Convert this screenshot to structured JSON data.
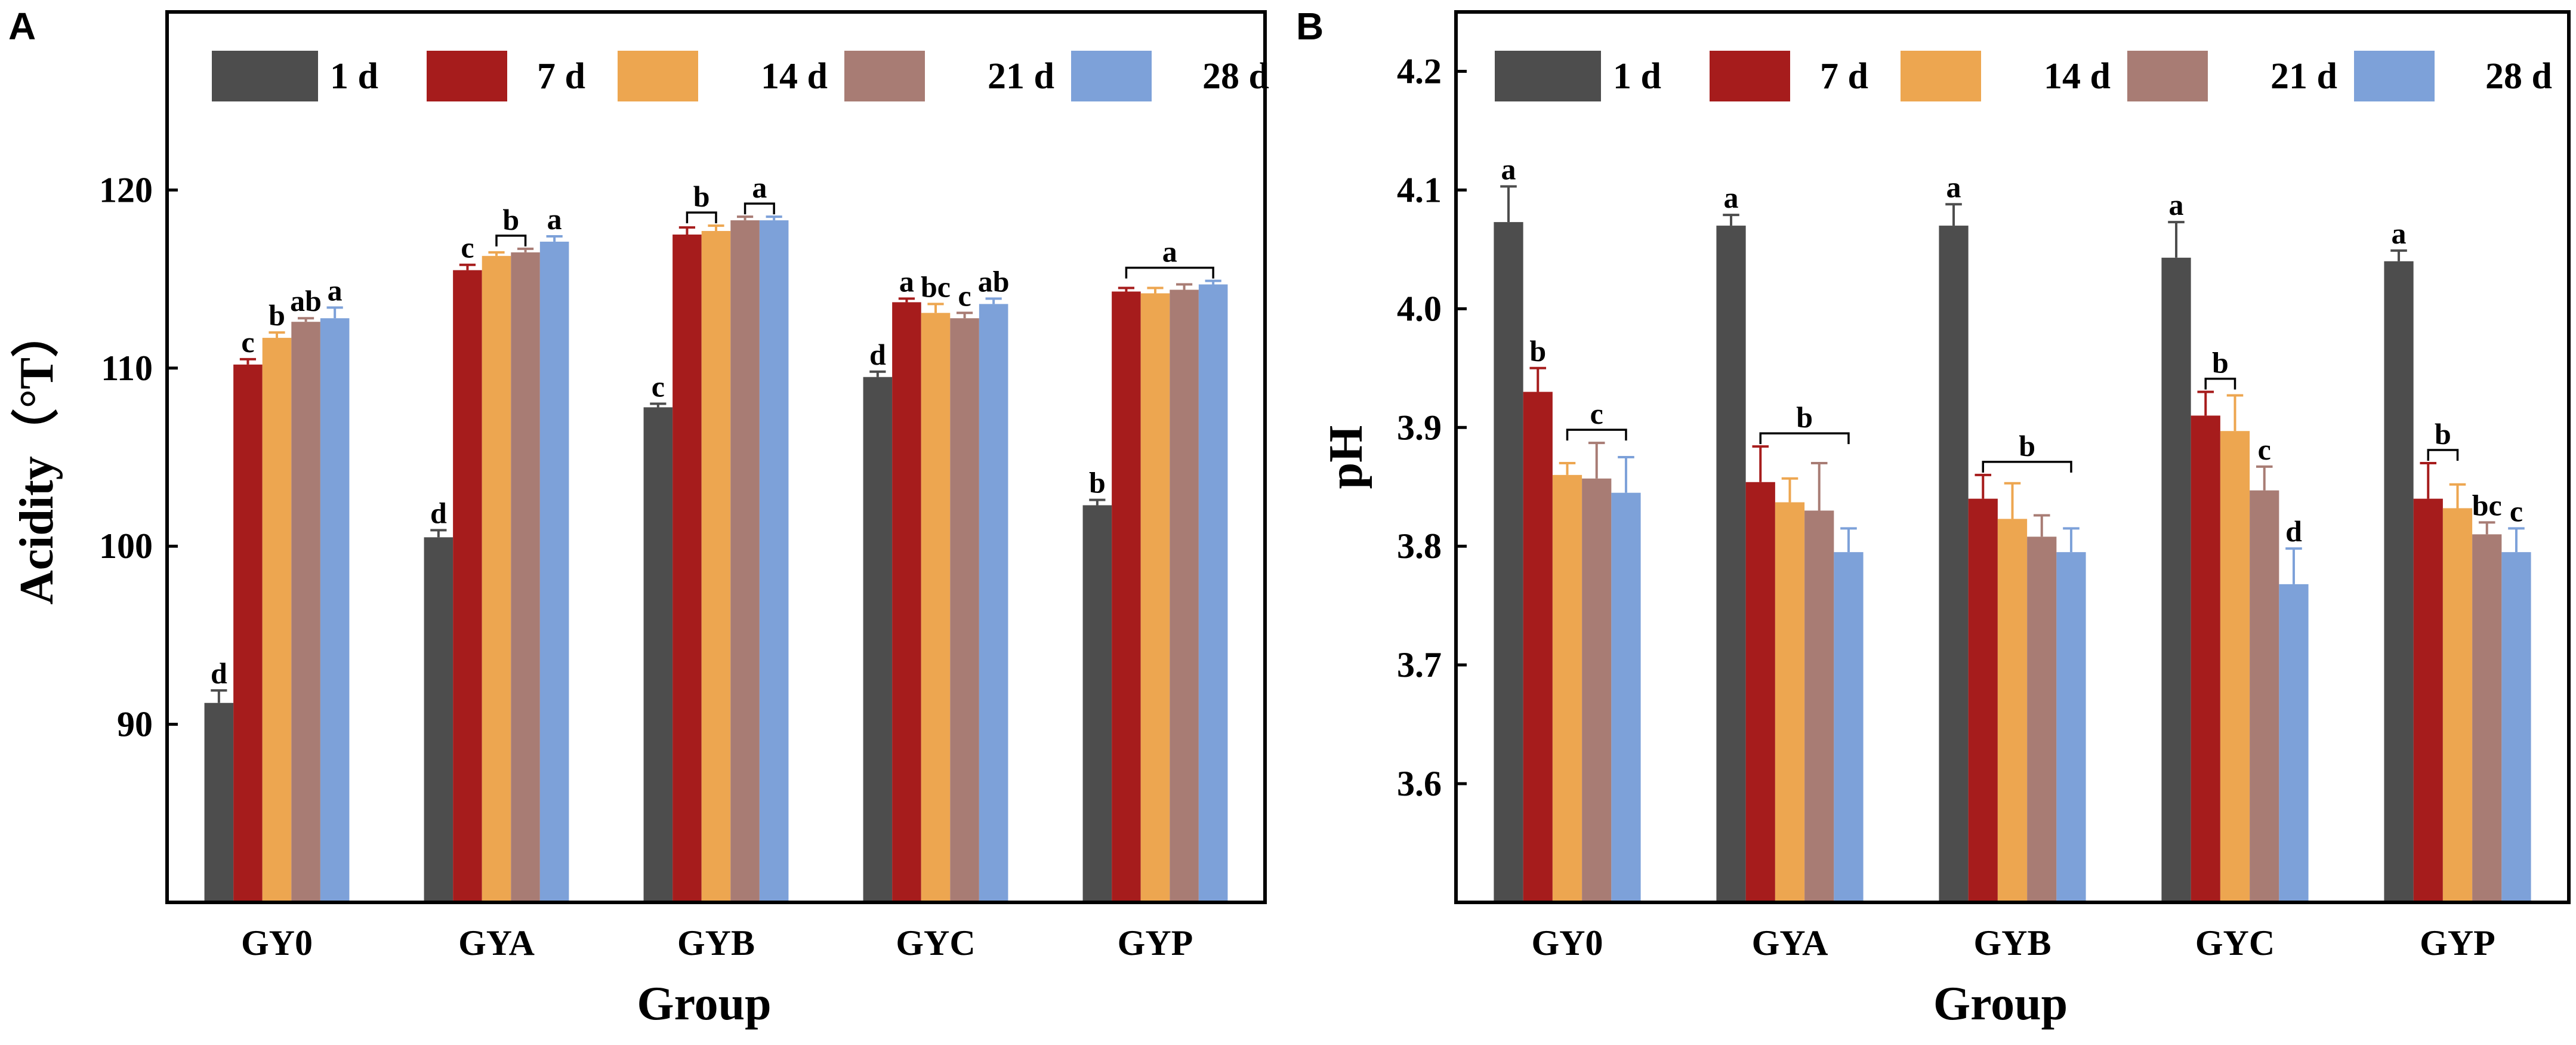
{
  "chart_data": [
    {
      "panel": "A",
      "type": "bar",
      "title": "",
      "xlabel": "Group",
      "ylabel": "Acidity（°T）",
      "ylim": [
        80,
        130
      ],
      "yticks": [
        90,
        100,
        110,
        120
      ],
      "categories": [
        "GY0",
        "GYA",
        "GYB",
        "GYC",
        "GYP"
      ],
      "legend_position": "top",
      "series": [
        {
          "name": "1 d",
          "color": "#4d4d4d",
          "values": [
            91.2,
            100.5,
            107.8,
            109.5,
            102.3
          ],
          "errors": [
            0.7,
            0.4,
            0.2,
            0.3,
            0.3
          ]
        },
        {
          "name": "7 d",
          "color": "#a61c1c",
          "values": [
            110.2,
            115.5,
            117.5,
            113.7,
            114.3
          ],
          "errors": [
            0.3,
            0.3,
            0.4,
            0.2,
            0.2
          ]
        },
        {
          "name": "14 d",
          "color": "#eda650",
          "values": [
            111.7,
            116.3,
            117.7,
            113.1,
            114.2
          ],
          "errors": [
            0.3,
            0.2,
            0.3,
            0.5,
            0.3
          ]
        },
        {
          "name": "21 d",
          "color": "#a87c74",
          "values": [
            112.6,
            116.5,
            118.3,
            112.8,
            114.4
          ],
          "errors": [
            0.2,
            0.2,
            0.2,
            0.3,
            0.3
          ]
        },
        {
          "name": "28 d",
          "color": "#7da1d9",
          "values": [
            112.8,
            117.1,
            118.3,
            113.6,
            114.7
          ],
          "errors": [
            0.6,
            0.3,
            0.2,
            0.3,
            0.2
          ]
        }
      ],
      "annotations": [
        {
          "group": 0,
          "series": 0,
          "text": "d"
        },
        {
          "group": 0,
          "series": 1,
          "text": "c"
        },
        {
          "group": 0,
          "series": 2,
          "text": "b"
        },
        {
          "group": 0,
          "series": 3,
          "text": "ab"
        },
        {
          "group": 0,
          "series": 4,
          "text": "a"
        },
        {
          "group": 1,
          "series": 0,
          "text": "d"
        },
        {
          "group": 1,
          "series": 1,
          "text": "c"
        },
        {
          "group": 1,
          "series": [
            2,
            3
          ],
          "text": "b",
          "bracket": true
        },
        {
          "group": 1,
          "series": 4,
          "text": "a"
        },
        {
          "group": 2,
          "series": 0,
          "text": "c"
        },
        {
          "group": 2,
          "series": [
            1,
            2
          ],
          "text": "b",
          "bracket": true
        },
        {
          "group": 2,
          "series": [
            3,
            4
          ],
          "text": "a",
          "bracket": true
        },
        {
          "group": 3,
          "series": 0,
          "text": "d"
        },
        {
          "group": 3,
          "series": 1,
          "text": "a"
        },
        {
          "group": 3,
          "series": 2,
          "text": "bc"
        },
        {
          "group": 3,
          "series": 3,
          "text": "c"
        },
        {
          "group": 3,
          "series": 4,
          "text": "ab"
        },
        {
          "group": 4,
          "series": 0,
          "text": "b"
        },
        {
          "group": 4,
          "series": [
            1,
            4
          ],
          "text": "a",
          "bracket": true
        }
      ]
    },
    {
      "panel": "B",
      "type": "bar",
      "title": "",
      "xlabel": "Group",
      "ylabel": "pH",
      "ylim": [
        3.5,
        4.25
      ],
      "yticks": [
        3.6,
        3.7,
        3.8,
        3.9,
        4.0,
        4.1,
        4.2
      ],
      "categories": [
        "GY0",
        "GYA",
        "GYB",
        "GYC",
        "GYP"
      ],
      "legend_position": "top",
      "series": [
        {
          "name": "1 d",
          "color": "#4d4d4d",
          "values": [
            4.073,
            4.07,
            4.07,
            4.043,
            4.04
          ],
          "errors": [
            0.03,
            0.009,
            0.018,
            0.03,
            0.009
          ]
        },
        {
          "name": "7 d",
          "color": "#a61c1c",
          "values": [
            3.93,
            3.854,
            3.84,
            3.91,
            3.84
          ],
          "errors": [
            0.02,
            0.03,
            0.02,
            0.02,
            0.03
          ]
        },
        {
          "name": "14 d",
          "color": "#eda650",
          "values": [
            3.86,
            3.837,
            3.823,
            3.897,
            3.832
          ],
          "errors": [
            0.01,
            0.02,
            0.03,
            0.03,
            0.02
          ]
        },
        {
          "name": "21 d",
          "color": "#a87c74",
          "values": [
            3.857,
            3.83,
            3.808,
            3.847,
            3.81
          ],
          "errors": [
            0.03,
            0.04,
            0.018,
            0.02,
            0.01
          ]
        },
        {
          "name": "28 d",
          "color": "#7da1d9",
          "values": [
            3.845,
            3.795,
            3.795,
            3.768,
            3.795
          ],
          "errors": [
            0.03,
            0.02,
            0.02,
            0.03,
            0.02
          ]
        }
      ],
      "annotations": [
        {
          "group": 0,
          "series": 0,
          "text": "a"
        },
        {
          "group": 0,
          "series": 1,
          "text": "b"
        },
        {
          "group": 0,
          "series": [
            2,
            4
          ],
          "text": "c",
          "bracket": true
        },
        {
          "group": 1,
          "series": 0,
          "text": "a"
        },
        {
          "group": 1,
          "series": [
            1,
            4
          ],
          "text": "b",
          "bracket": true
        },
        {
          "group": 2,
          "series": 0,
          "text": "a"
        },
        {
          "group": 2,
          "series": [
            1,
            4
          ],
          "text": "b",
          "bracket": true
        },
        {
          "group": 3,
          "series": 0,
          "text": "a"
        },
        {
          "group": 3,
          "series": [
            1,
            2
          ],
          "text": "b",
          "bracket": true
        },
        {
          "group": 3,
          "series": 3,
          "text": "c"
        },
        {
          "group": 3,
          "series": 4,
          "text": "d"
        },
        {
          "group": 4,
          "series": 0,
          "text": "a"
        },
        {
          "group": 4,
          "series": [
            1,
            2
          ],
          "text": "b",
          "bracket": true
        },
        {
          "group": 4,
          "series": 3,
          "text": "bc"
        },
        {
          "group": 4,
          "series": 4,
          "text": "c"
        }
      ]
    }
  ]
}
